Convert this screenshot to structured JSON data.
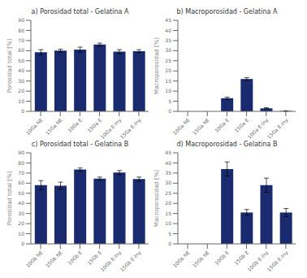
{
  "chart_data": [
    {
      "type": "bar",
      "title": "a) Porosidad total - Gelatina A",
      "categories": [
        "10Ga NE",
        "15Ga NE",
        "10Ga E",
        "15Ga E",
        "10Ga E-Iny",
        "15Ga E-Iny"
      ],
      "values": [
        58.5,
        60.0,
        61.0,
        66.0,
        59.0,
        59.5
      ],
      "errors": [
        2.5,
        1.5,
        2.5,
        1.5,
        2.0,
        1.5
      ],
      "color": "#1a2a6e",
      "ylabel": "Porosidad total [%]",
      "ylim": [
        0,
        90
      ],
      "yticks": [
        0,
        10,
        20,
        30,
        40,
        50,
        60,
        70,
        80,
        90
      ],
      "grid": false
    },
    {
      "type": "bar",
      "title": "b) Macroporosidad - Gelatina A",
      "categories": [
        "10Ga NE",
        "15Ga NE",
        "10Ga E",
        "15Ga E",
        "10Ga E-Iny",
        "15Ga E-Iny"
      ],
      "values": [
        0.0,
        0.0,
        6.5,
        16.0,
        1.5,
        0.2
      ],
      "errors": [
        0.0,
        0.0,
        0.5,
        0.7,
        0.3,
        0.1
      ],
      "color": "#1a2a6e",
      "ylabel": "Macroporosidad [%]",
      "ylim": [
        0,
        45
      ],
      "yticks": [
        0,
        5,
        10,
        15,
        20,
        25,
        30,
        35,
        40,
        45
      ],
      "grid": false
    },
    {
      "type": "bar",
      "title": "c) Porosidad total - Gelatina B",
      "categories": [
        "10Gb NE",
        "15Gb NE",
        "10Gb E",
        "15Gb E",
        "10Gb E-Iny",
        "15Gb E-Iny"
      ],
      "values": [
        58.0,
        57.5,
        73.5,
        64.5,
        70.5,
        64.0
      ],
      "errors": [
        4.5,
        3.5,
        1.5,
        1.5,
        2.0,
        2.0
      ],
      "color": "#1a2a6e",
      "ylabel": "Porosidad total [%]",
      "ylim": [
        0,
        90
      ],
      "yticks": [
        0,
        10,
        20,
        30,
        40,
        50,
        60,
        70,
        80,
        90
      ],
      "grid": false
    },
    {
      "type": "bar",
      "title": "d) Macroporosidad - Gelatina B",
      "categories": [
        "10Gb NE",
        "15Gb NE",
        "10Gb E",
        "15Gb E",
        "10Gb E-Iny",
        "15Gb E-Iny"
      ],
      "values": [
        0.0,
        0.0,
        37.0,
        15.5,
        29.0,
        15.5
      ],
      "errors": [
        0.0,
        0.0,
        3.5,
        1.5,
        3.5,
        2.0
      ],
      "color": "#1a2a6e",
      "ylabel": "Macroporosidad [%]",
      "ylim": [
        0,
        45
      ],
      "yticks": [
        0,
        5,
        10,
        15,
        20,
        25,
        30,
        35,
        40,
        45
      ],
      "grid": false
    }
  ]
}
